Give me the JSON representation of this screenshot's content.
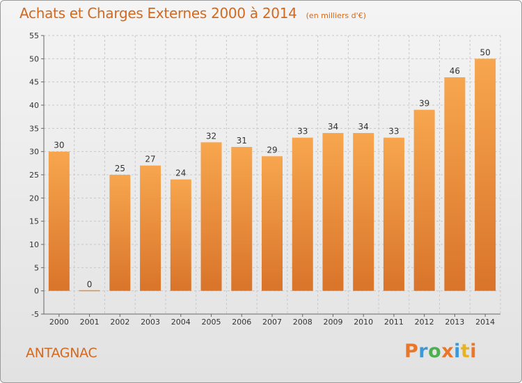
{
  "title": "Achats et Charges Externes 2000 à 2014",
  "subtitle": "(en milliers d'€)",
  "location": "ANTAGNAC",
  "logo": {
    "letters": [
      "P",
      "r",
      "o",
      "x",
      "i",
      "t",
      "i"
    ],
    "colors": [
      "#e8762b",
      "#3a9ad9",
      "#4caf50",
      "#e8762b",
      "#3a9ad9",
      "#e8b323",
      "#e8762b"
    ]
  },
  "colors": {
    "accent": "#d2691e",
    "bar_light": "#f7a64e",
    "bar_dark": "#d9742a",
    "grid": "#c8c8c8"
  },
  "chart_data": {
    "type": "bar",
    "title": "Achats et Charges Externes 2000 à 2014",
    "subtitle": "(en milliers d'€)",
    "categories": [
      "2000",
      "2001",
      "2002",
      "2003",
      "2004",
      "2005",
      "2006",
      "2007",
      "2008",
      "2009",
      "2010",
      "2011",
      "2012",
      "2013",
      "2014"
    ],
    "values": [
      30,
      0,
      25,
      27,
      24,
      32,
      31,
      29,
      33,
      34,
      34,
      33,
      39,
      46,
      50
    ],
    "value_labels": [
      "30",
      "0",
      "25",
      "27",
      "24",
      "32",
      "31",
      "29",
      "33",
      "34",
      "34",
      "33",
      "39",
      "46",
      "50"
    ],
    "ylim": [
      -5,
      55
    ],
    "yticks": [
      -5,
      0,
      5,
      10,
      15,
      20,
      25,
      30,
      35,
      40,
      45,
      50,
      55
    ],
    "ytick_labels": [
      "-5",
      "0",
      "5",
      "10",
      "15",
      "20",
      "25",
      "30",
      "35",
      "40",
      "45",
      "50",
      "55"
    ],
    "grid": true
  }
}
